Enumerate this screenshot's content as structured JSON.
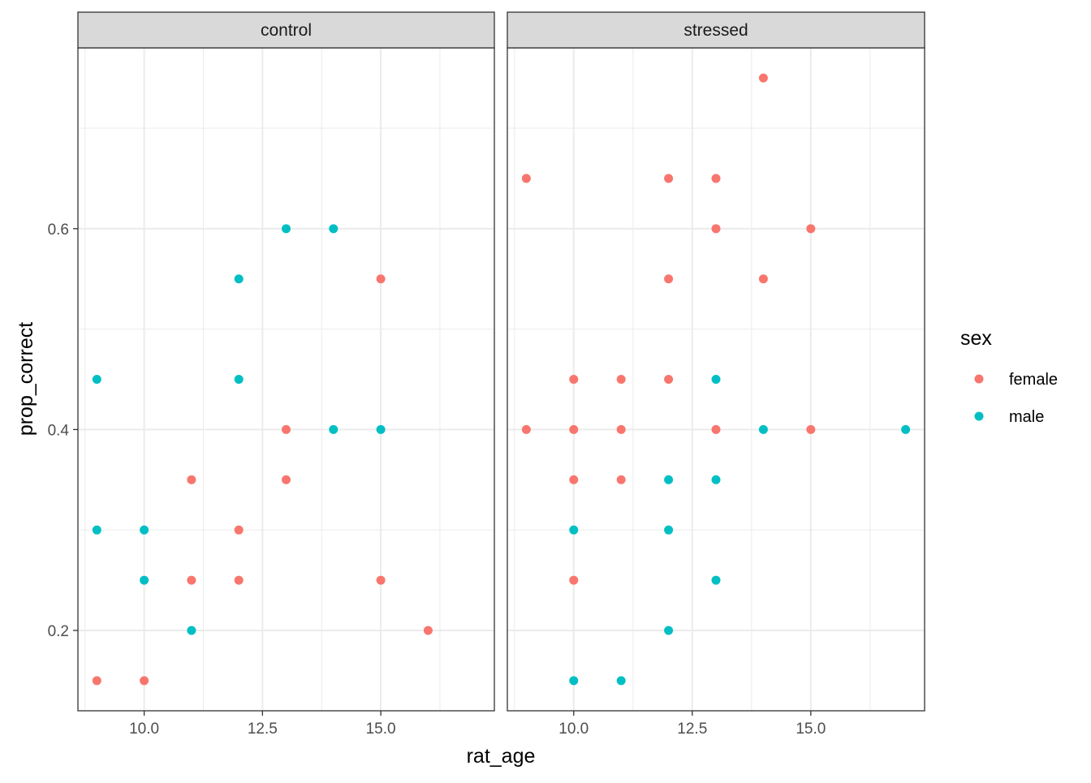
{
  "chart_data": {
    "type": "scatter",
    "facet_by": "stress_condition",
    "facets": [
      {
        "label": "control",
        "points": [
          {
            "x": 9,
            "y": 0.45,
            "sex": "male"
          },
          {
            "x": 9,
            "y": 0.3,
            "sex": "male"
          },
          {
            "x": 9,
            "y": 0.15,
            "sex": "female"
          },
          {
            "x": 10,
            "y": 0.3,
            "sex": "male"
          },
          {
            "x": 10,
            "y": 0.25,
            "sex": "male"
          },
          {
            "x": 10,
            "y": 0.15,
            "sex": "female"
          },
          {
            "x": 11,
            "y": 0.35,
            "sex": "female"
          },
          {
            "x": 11,
            "y": 0.25,
            "sex": "female"
          },
          {
            "x": 11,
            "y": 0.2,
            "sex": "male"
          },
          {
            "x": 12,
            "y": 0.55,
            "sex": "male"
          },
          {
            "x": 12,
            "y": 0.45,
            "sex": "male"
          },
          {
            "x": 12,
            "y": 0.3,
            "sex": "female"
          },
          {
            "x": 12,
            "y": 0.25,
            "sex": "female"
          },
          {
            "x": 13,
            "y": 0.6,
            "sex": "male"
          },
          {
            "x": 13,
            "y": 0.4,
            "sex": "female"
          },
          {
            "x": 13,
            "y": 0.35,
            "sex": "female"
          },
          {
            "x": 14,
            "y": 0.6,
            "sex": "male"
          },
          {
            "x": 14,
            "y": 0.4,
            "sex": "male"
          },
          {
            "x": 15,
            "y": 0.55,
            "sex": "female"
          },
          {
            "x": 15,
            "y": 0.4,
            "sex": "male"
          },
          {
            "x": 15,
            "y": 0.25,
            "sex": "female"
          },
          {
            "x": 16,
            "y": 0.2,
            "sex": "female"
          }
        ]
      },
      {
        "label": "stressed",
        "points": [
          {
            "x": 9,
            "y": 0.65,
            "sex": "female"
          },
          {
            "x": 9,
            "y": 0.4,
            "sex": "female"
          },
          {
            "x": 10,
            "y": 0.45,
            "sex": "female"
          },
          {
            "x": 10,
            "y": 0.4,
            "sex": "female"
          },
          {
            "x": 10,
            "y": 0.35,
            "sex": "female"
          },
          {
            "x": 10,
            "y": 0.3,
            "sex": "male"
          },
          {
            "x": 10,
            "y": 0.25,
            "sex": "female"
          },
          {
            "x": 10,
            "y": 0.15,
            "sex": "male"
          },
          {
            "x": 11,
            "y": 0.45,
            "sex": "female"
          },
          {
            "x": 11,
            "y": 0.4,
            "sex": "female"
          },
          {
            "x": 11,
            "y": 0.35,
            "sex": "female"
          },
          {
            "x": 11,
            "y": 0.15,
            "sex": "male"
          },
          {
            "x": 12,
            "y": 0.65,
            "sex": "female"
          },
          {
            "x": 12,
            "y": 0.55,
            "sex": "female"
          },
          {
            "x": 12,
            "y": 0.45,
            "sex": "female"
          },
          {
            "x": 12,
            "y": 0.35,
            "sex": "male"
          },
          {
            "x": 12,
            "y": 0.3,
            "sex": "male"
          },
          {
            "x": 12,
            "y": 0.2,
            "sex": "male"
          },
          {
            "x": 13,
            "y": 0.65,
            "sex": "female"
          },
          {
            "x": 13,
            "y": 0.6,
            "sex": "female"
          },
          {
            "x": 13,
            "y": 0.45,
            "sex": "male"
          },
          {
            "x": 13,
            "y": 0.4,
            "sex": "female"
          },
          {
            "x": 13,
            "y": 0.35,
            "sex": "male"
          },
          {
            "x": 13,
            "y": 0.25,
            "sex": "male"
          },
          {
            "x": 14,
            "y": 0.75,
            "sex": "female"
          },
          {
            "x": 14,
            "y": 0.55,
            "sex": "female"
          },
          {
            "x": 14,
            "y": 0.4,
            "sex": "male"
          },
          {
            "x": 15,
            "y": 0.6,
            "sex": "female"
          },
          {
            "x": 15,
            "y": 0.4,
            "sex": "female"
          },
          {
            "x": 17,
            "y": 0.4,
            "sex": "male"
          }
        ]
      }
    ],
    "xlabel": "rat_age",
    "ylabel": "prop_correct",
    "xlim": [
      8.6,
      17.4
    ],
    "ylim": [
      0.12,
      0.78
    ],
    "xticks": [
      10.0,
      12.5,
      15.0
    ],
    "xtick_labels": [
      "10.0",
      "12.5",
      "15.0"
    ],
    "yticks": [
      0.2,
      0.4,
      0.6
    ],
    "ytick_labels": [
      "0.2",
      "0.4",
      "0.6"
    ],
    "grid": true,
    "legend": {
      "title": "sex",
      "position": "right",
      "entries": [
        {
          "label": "female",
          "color": "#F8766D"
        },
        {
          "label": "male",
          "color": "#00BFC4"
        }
      ]
    }
  }
}
